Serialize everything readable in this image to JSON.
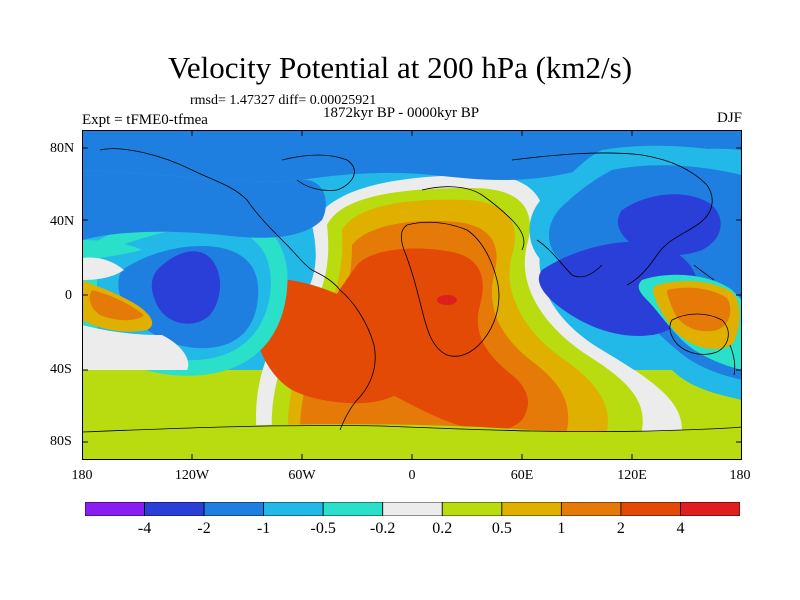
{
  "title": "Velocity Potential at 200 hPa (km2/s)",
  "stats": "rmsd= 1.47327 diff= 0.00025921",
  "experiment": "Expt = tFME0-tfmea",
  "period": "1872kyr BP - 0000kyr BP",
  "season": "DJF",
  "y_axis_labels": [
    "80N",
    "40N",
    "0",
    "40S",
    "80S"
  ],
  "x_axis_labels": [
    "180",
    "120W",
    "60W",
    "0",
    "60E",
    "120E",
    "180"
  ],
  "colorbar": {
    "colors": [
      "#8a1ef0",
      "#2a3fd8",
      "#1f7fe0",
      "#22b8e8",
      "#2ae0c8",
      "#ececec",
      "#b8dc10",
      "#e0b000",
      "#e67a08",
      "#e24a06",
      "#e01e1e"
    ],
    "labels": [
      "-4",
      "-2",
      "-1",
      "-0.5",
      "-0.2",
      "0.2",
      "0.5",
      "1",
      "2",
      "4"
    ]
  }
}
